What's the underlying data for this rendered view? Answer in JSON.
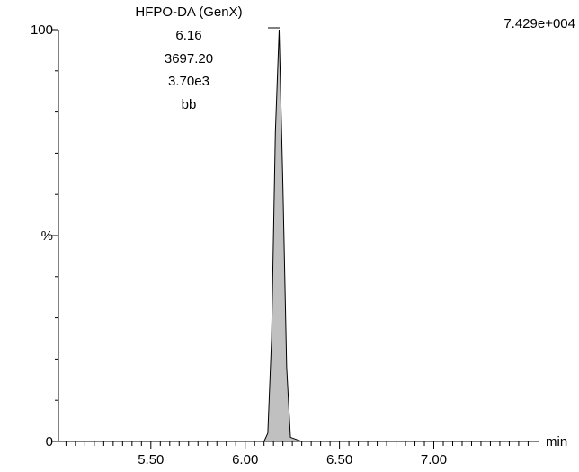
{
  "chart_data": {
    "type": "area",
    "annotations": [
      "HFPO-DA (GenX)",
      "6.16",
      "3697.20",
      "3.70e3",
      "bb"
    ],
    "intensity": "7.429e+004",
    "x_label": "min",
    "x": [
      5.01,
      6.1,
      6.12,
      6.14,
      6.16,
      6.18,
      6.2,
      6.22,
      6.24,
      6.3,
      7.56
    ],
    "values": [
      0,
      0,
      2,
      25,
      75,
      100,
      62,
      18,
      1,
      0,
      0
    ],
    "color": "#c0c0c0",
    "xlim": [
      5.01,
      7.56
    ],
    "xticks": [
      {
        "value": 5.5,
        "label": "5.50"
      },
      {
        "value": 6,
        "label": "6.00"
      },
      {
        "value": 6.5,
        "label": "6.50"
      },
      {
        "value": 7,
        "label": "7.00"
      }
    ],
    "xminorticks": [
      5.05,
      5.1,
      5.15,
      5.2,
      5.25,
      5.3,
      5.35,
      5.4,
      5.45,
      5.55,
      5.6,
      5.65,
      5.7,
      5.75,
      5.8,
      5.85,
      5.9,
      5.95,
      6.05,
      6.1,
      6.15,
      6.2,
      6.25,
      6.3,
      6.35,
      6.4,
      6.45,
      6.55,
      6.6,
      6.65,
      6.7,
      6.75,
      6.8,
      6.85,
      6.9,
      6.95,
      7.05,
      7.1,
      7.15,
      7.2,
      7.25,
      7.3,
      7.35,
      7.4,
      7.45,
      7.5
    ],
    "ylim": [
      0,
      100
    ],
    "yticks": [
      0,
      {
        "value": 50,
        "label": "%"
      },
      100
    ],
    "yminorticks": [
      10,
      20,
      30,
      40,
      60,
      70,
      80,
      90
    ]
  }
}
